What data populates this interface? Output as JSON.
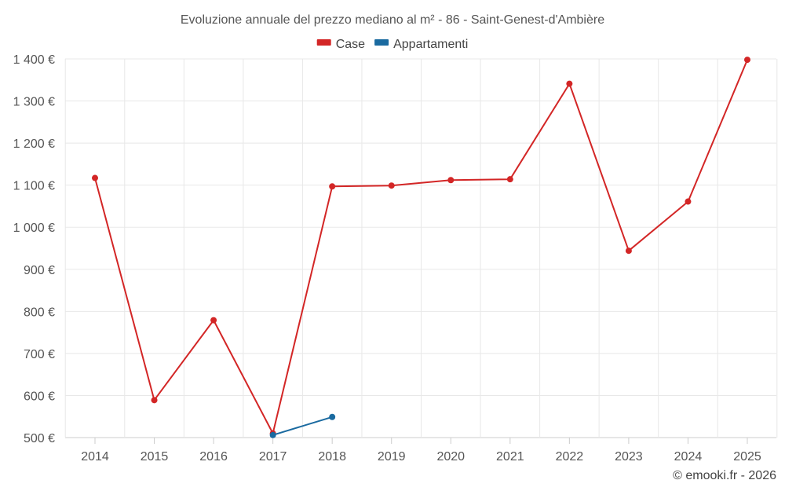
{
  "colors": {
    "case": "#d32626",
    "appartamenti": "#1a6aa0"
  },
  "chart_data": {
    "type": "line",
    "title": "Evoluzione annuale del prezzo mediano al m² - 86 - Saint-Genest-d'Ambière",
    "xlabel": "",
    "ylabel": "",
    "x": [
      "2014",
      "2015",
      "2016",
      "2017",
      "2018",
      "2019",
      "2020",
      "2021",
      "2022",
      "2023",
      "2024",
      "2025"
    ],
    "y_ticks": [
      "500 €",
      "600 €",
      "700 €",
      "800 €",
      "900 €",
      "1 000 €",
      "1 100 €",
      "1 200 €",
      "1 300 €",
      "1 400 €"
    ],
    "ylim": [
      500,
      1400
    ],
    "grid": true,
    "legend_position": "top-center",
    "series": [
      {
        "name": "Case",
        "color": "#d32626",
        "values": [
          1117,
          589,
          779,
          510,
          1097,
          1099,
          1112,
          1114,
          1341,
          944,
          1061,
          1398
        ]
      },
      {
        "name": "Appartamenti",
        "color": "#1a6aa0",
        "values": [
          null,
          null,
          null,
          506,
          549,
          null,
          null,
          null,
          null,
          null,
          null,
          null
        ]
      }
    ]
  },
  "credit": "© emooki.fr - 2026"
}
